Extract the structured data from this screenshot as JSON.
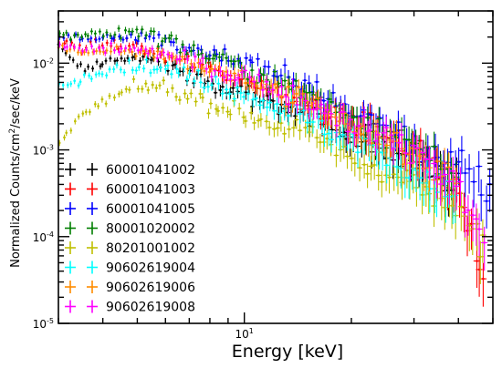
{
  "chart_data": {
    "type": "scatter",
    "title": "",
    "xlabel": "Energy [keV]",
    "ylabel_main": "Normalized Counts/cm",
    "ylabel_sup": "2",
    "ylabel_tail": "/sec/keV",
    "x_scale": "log",
    "y_scale": "log",
    "xlim": [
      3,
      50
    ],
    "ylim": [
      1e-05,
      0.04
    ],
    "x_tick_labels": [
      {
        "base": "10",
        "exp": "1",
        "value": 10
      }
    ],
    "y_tick_labels": [
      {
        "base": "10",
        "exp": "-2",
        "value": 0.01
      },
      {
        "base": "10",
        "exp": "-3",
        "value": 0.001
      },
      {
        "base": "10",
        "exp": "-4",
        "value": 0.0001
      },
      {
        "base": "10",
        "exp": "-5",
        "value": 1e-05
      }
    ],
    "grid": false,
    "legend_position": "lower-left",
    "series": [
      {
        "name": "60001041002",
        "color": "#000000",
        "x": [
          3.0,
          3.5,
          4.0,
          5.0,
          6.0,
          8.0,
          10.0,
          15.0,
          20.0,
          30.0,
          40.0
        ],
        "y": [
          0.016,
          0.0085,
          0.0105,
          0.0115,
          0.0095,
          0.0055,
          0.0045,
          0.0027,
          0.0015,
          0.0007,
          0.00035
        ]
      },
      {
        "name": "60001041003",
        "color": "#ff0000",
        "x": [
          3.0,
          3.5,
          4.0,
          5.0,
          6.0,
          8.0,
          10.0,
          15.0,
          20.0,
          30.0,
          40.0,
          48.0
        ],
        "y": [
          0.018,
          0.015,
          0.017,
          0.016,
          0.012,
          0.0085,
          0.0065,
          0.0035,
          0.0022,
          0.001,
          0.0004,
          2e-05
        ]
      },
      {
        "name": "60001041005",
        "color": "#0000ff",
        "x": [
          3.0,
          3.5,
          4.0,
          5.0,
          6.0,
          8.0,
          10.0,
          15.0,
          20.0,
          30.0,
          40.0,
          50.0
        ],
        "y": [
          0.02,
          0.019,
          0.02,
          0.021,
          0.018,
          0.013,
          0.0105,
          0.0055,
          0.003,
          0.0013,
          0.0006,
          0.0003
        ]
      },
      {
        "name": "80001020002",
        "color": "#007f00",
        "x": [
          3.0,
          3.5,
          4.0,
          5.0,
          6.0,
          8.0,
          10.0,
          15.0,
          20.0,
          30.0,
          40.0
        ],
        "y": [
          0.022,
          0.021,
          0.022,
          0.024,
          0.019,
          0.012,
          0.009,
          0.0045,
          0.0025,
          0.0011,
          0.0005
        ]
      },
      {
        "name": "80201001002",
        "color": "#bfbf00",
        "x": [
          3.0,
          3.5,
          4.0,
          5.0,
          6.0,
          8.0,
          10.0,
          15.0,
          20.0,
          30.0,
          40.0,
          48.0
        ],
        "y": [
          0.0011,
          0.0025,
          0.0035,
          0.0055,
          0.005,
          0.0035,
          0.0026,
          0.0015,
          0.0008,
          0.0004,
          0.0002,
          8e-05
        ]
      },
      {
        "name": "90602619004",
        "color": "#00ffff",
        "x": [
          3.0,
          3.5,
          4.0,
          5.0,
          6.0,
          8.0,
          10.0,
          15.0,
          20.0,
          30.0,
          40.0
        ],
        "y": [
          0.0055,
          0.0065,
          0.0085,
          0.0095,
          0.0085,
          0.006,
          0.0045,
          0.0024,
          0.0013,
          0.0006,
          0.0003
        ]
      },
      {
        "name": "90602619006",
        "color": "#ff8c00",
        "x": [
          3.0,
          3.5,
          4.0,
          5.0,
          6.0,
          8.0,
          10.0,
          15.0,
          20.0,
          30.0,
          40.0
        ],
        "y": [
          0.015,
          0.013,
          0.014,
          0.0135,
          0.0115,
          0.0085,
          0.0065,
          0.0035,
          0.002,
          0.0009,
          0.0004
        ]
      },
      {
        "name": "90602619008",
        "color": "#ff00ff",
        "x": [
          3.0,
          3.5,
          4.0,
          5.0,
          6.0,
          8.0,
          10.0,
          15.0,
          20.0,
          30.0,
          40.0,
          48.0
        ],
        "y": [
          0.016,
          0.014,
          0.015,
          0.0145,
          0.012,
          0.009,
          0.007,
          0.0038,
          0.0021,
          0.001,
          0.0004,
          7e-05
        ]
      }
    ]
  }
}
